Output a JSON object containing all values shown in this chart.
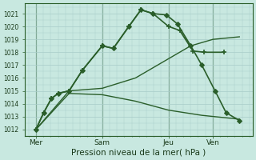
{
  "figsize": [
    3.2,
    2.0
  ],
  "dpi": 100,
  "bg": "#c8e8e0",
  "grid_color": "#a8ccc8",
  "line_color": "#2a5e2a",
  "spine_color": "#2a5e2a",
  "text_color": "#1a3a1a",
  "xlabel": "Pression niveau de la mer( hPa )",
  "xlabel_fontsize": 7.5,
  "ylim": [
    1011.5,
    1021.8
  ],
  "xlim": [
    -0.5,
    9.8
  ],
  "yticks": [
    1012,
    1013,
    1014,
    1015,
    1016,
    1017,
    1018,
    1019,
    1020,
    1021
  ],
  "ytick_fontsize": 5.5,
  "xtick_positions": [
    0,
    3,
    6,
    8
  ],
  "xtick_labels": [
    "Mer",
    "Sam",
    "Jeu",
    "Ven"
  ],
  "xtick_fontsize": 6.5,
  "vlines": [
    0,
    3,
    6,
    8
  ],
  "series": [
    {
      "x": [
        0,
        0.35,
        0.7,
        1.0,
        1.5,
        2.1,
        3.0,
        3.5,
        4.2,
        4.75,
        5.3,
        6.0,
        6.5,
        7.1,
        7.6,
        8.5
      ],
      "y": [
        1012.0,
        1013.3,
        1014.4,
        1014.8,
        1015.0,
        1016.6,
        1018.5,
        1018.3,
        1020.0,
        1021.3,
        1021.0,
        1020.0,
        1019.7,
        1018.1,
        1018.0,
        1018.0
      ],
      "marker": "+",
      "ms": 4.5,
      "mew": 1.2,
      "lw": 1.2,
      "filled": false
    },
    {
      "x": [
        0,
        0.35,
        0.7,
        1.0,
        1.5,
        2.1,
        3.0,
        3.5,
        4.2,
        4.75,
        5.3,
        5.9,
        6.4,
        7.0,
        7.5,
        8.1,
        8.6,
        9.2
      ],
      "y": [
        1012.0,
        1013.3,
        1014.4,
        1014.8,
        1015.0,
        1016.6,
        1018.5,
        1018.3,
        1020.0,
        1021.3,
        1021.0,
        1020.9,
        1020.2,
        1018.5,
        1017.0,
        1015.0,
        1013.3,
        1012.7
      ],
      "marker": "D",
      "ms": 3,
      "mew": 0.8,
      "lw": 1.2,
      "filled": true
    },
    {
      "x": [
        0,
        1.5,
        3.0,
        4.5,
        6.0,
        7.0,
        8.0,
        9.2
      ],
      "y": [
        1012.0,
        1015.0,
        1015.2,
        1016.0,
        1017.5,
        1018.5,
        1019.0,
        1019.2
      ],
      "marker": null,
      "ms": 0,
      "mew": 0,
      "lw": 1.0,
      "filled": false
    },
    {
      "x": [
        0,
        1.5,
        3.0,
        4.5,
        6.0,
        7.5,
        9.2
      ],
      "y": [
        1012.0,
        1014.8,
        1014.7,
        1014.2,
        1013.5,
        1013.1,
        1012.8
      ],
      "marker": null,
      "ms": 0,
      "mew": 0,
      "lw": 1.0,
      "filled": false
    }
  ]
}
